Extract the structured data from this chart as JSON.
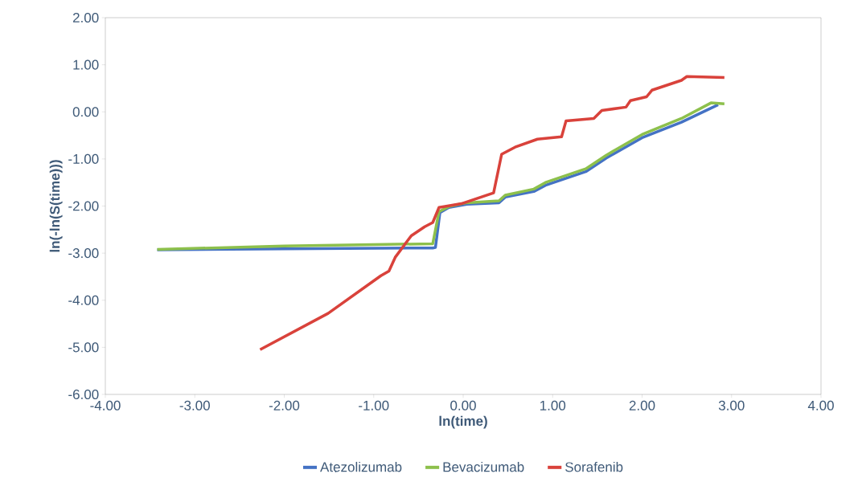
{
  "chart_data": {
    "type": "line",
    "xlabel": "ln(time)",
    "ylabel": "ln(-ln(S(time)))",
    "xlim": [
      -4,
      4
    ],
    "ylim": [
      -6,
      2
    ],
    "xticks": [
      {
        "value": -4,
        "label": "-4.00"
      },
      {
        "value": -3,
        "label": "-3.00"
      },
      {
        "value": -2,
        "label": "-2.00"
      },
      {
        "value": -1,
        "label": "-1.00"
      },
      {
        "value": 0,
        "label": "0.00"
      },
      {
        "value": 1,
        "label": "1.00"
      },
      {
        "value": 2,
        "label": "2.00"
      },
      {
        "value": 3,
        "label": "3.00"
      },
      {
        "value": 4,
        "label": "4.00"
      }
    ],
    "yticks": [
      {
        "value": -6,
        "label": "-6.00"
      },
      {
        "value": -5,
        "label": "-5.00"
      },
      {
        "value": -4,
        "label": "-4.00"
      },
      {
        "value": -3,
        "label": "-3.00"
      },
      {
        "value": -2,
        "label": "-2.00"
      },
      {
        "value": -1,
        "label": "-1.00"
      },
      {
        "value": 0,
        "label": "0.00"
      },
      {
        "value": 1,
        "label": "1.00"
      },
      {
        "value": 2,
        "label": "2.00"
      }
    ],
    "grid": false,
    "legend": "bottom",
    "marker": "none",
    "line_style": "solid",
    "series": [
      {
        "name": "Atezolizumab",
        "color": "#4472c4",
        "x": [
          -3.42,
          -2.0,
          -0.34,
          -0.31,
          -0.26,
          -0.16,
          0.04,
          0.4,
          0.47,
          0.79,
          0.92,
          1.37,
          1.6,
          2.0,
          2.44,
          2.77,
          2.85
        ],
        "values": [
          -2.93,
          -2.91,
          -2.89,
          -2.88,
          -2.14,
          -2.03,
          -1.96,
          -1.93,
          -1.81,
          -1.69,
          -1.56,
          -1.27,
          -0.98,
          -0.55,
          -0.22,
          0.08,
          0.15
        ]
      },
      {
        "name": "Bevacizumab",
        "color": "#8dc04c",
        "x": [
          -3.42,
          -2.0,
          -0.34,
          -0.27,
          -0.16,
          0.04,
          0.4,
          0.47,
          0.79,
          0.92,
          1.37,
          1.6,
          2.0,
          2.44,
          2.77,
          2.92
        ],
        "values": [
          -2.92,
          -2.85,
          -2.8,
          -2.12,
          -2.01,
          -1.93,
          -1.89,
          -1.77,
          -1.64,
          -1.5,
          -1.21,
          -0.92,
          -0.48,
          -0.14,
          0.19,
          0.17
        ]
      },
      {
        "name": "Sorafenib",
        "color": "#d9423b",
        "x": [
          -2.27,
          -1.51,
          -0.92,
          -0.83,
          -0.76,
          -0.58,
          -0.43,
          -0.34,
          -0.27,
          -0.02,
          0.34,
          0.43,
          0.58,
          0.83,
          1.1,
          1.15,
          1.46,
          1.55,
          1.82,
          1.87,
          2.05,
          2.11,
          2.44,
          2.5,
          2.92
        ],
        "values": [
          -5.05,
          -4.28,
          -3.48,
          -3.38,
          -3.09,
          -2.63,
          -2.44,
          -2.35,
          -2.03,
          -1.95,
          -1.72,
          -0.9,
          -0.75,
          -0.58,
          -0.53,
          -0.19,
          -0.14,
          0.03,
          0.1,
          0.24,
          0.32,
          0.46,
          0.67,
          0.75,
          0.73
        ]
      }
    ]
  }
}
